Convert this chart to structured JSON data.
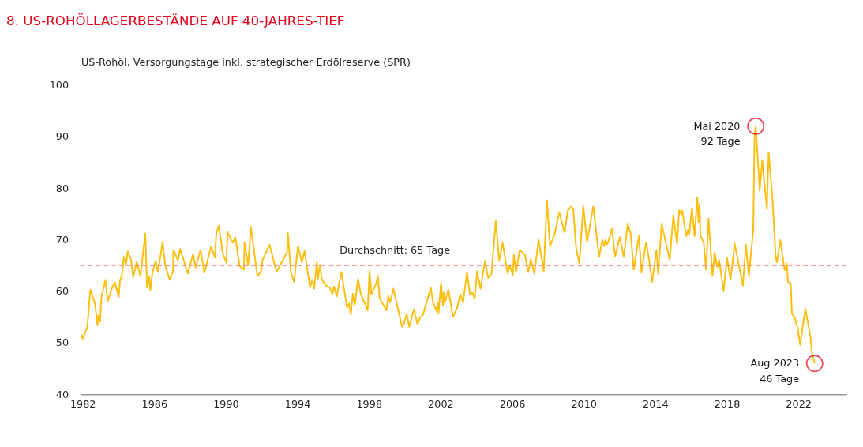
{
  "chart_data": {
    "type": "line",
    "title": "8.  US-ROHÖLLAGERBESTÄNDE AUF 40-JAHRES-TIEF",
    "ylabel": "US-Rohöl, Versorgungstage inkl. strategischer Erdölreserve (SPR)",
    "xlim": [
      1981.9,
      2024.7
    ],
    "xticks": [
      1982,
      1986,
      1990,
      1994,
      1998,
      2002,
      2006,
      2010,
      2014,
      2018,
      2022
    ],
    "ylim": [
      40,
      100
    ],
    "yticks": [
      40,
      50,
      60,
      70,
      80,
      90,
      100
    ],
    "grid": false,
    "marker": "none",
    "line_style": "solid",
    "ref_lines": [
      {
        "axis": "y",
        "value": 65,
        "label": "Durchschnitt: 65 Tage",
        "color": "#f07878",
        "line_style": "dashed"
      }
    ],
    "annotations": [
      {
        "text": "Mai 2020\n92 Tage",
        "x": 2019.62,
        "y": 92
      },
      {
        "text": "Aug 2023\n46 Tage",
        "x": 2022.91,
        "y": 46
      }
    ],
    "series": [
      {
        "color": "#fcbf10",
        "x": [
          1981.93,
          1982.0,
          1982.26,
          1982.43,
          1982.69,
          1982.83,
          1982.86,
          1982.98,
          1983.04,
          1983.27,
          1983.4,
          1983.66,
          1983.8,
          1984.02,
          1984.09,
          1984.19,
          1984.3,
          1984.42,
          1984.52,
          1984.71,
          1984.82,
          1985.03,
          1985.23,
          1985.5,
          1985.6,
          1985.72,
          1985.78,
          1985.89,
          1986.08,
          1986.21,
          1986.47,
          1986.61,
          1986.87,
          1987.05,
          1987.07,
          1987.33,
          1987.45,
          1987.88,
          1988.17,
          1988.31,
          1988.59,
          1988.8,
          1989.18,
          1989.39,
          1989.47,
          1989.61,
          1989.83,
          1990.03,
          1990.1,
          1990.39,
          1990.53,
          1990.77,
          1991.01,
          1991.05,
          1991.25,
          1991.4,
          1991.77,
          1991.98,
          1992.06,
          1992.45,
          1992.84,
          1993.42,
          1993.47,
          1993.64,
          1993.82,
          1994.03,
          1994.25,
          1994.4,
          1994.71,
          1994.83,
          1994.94,
          1995.09,
          1995.15,
          1995.26,
          1995.36,
          1995.55,
          1995.81,
          1995.95,
          1996.05,
          1996.2,
          1996.46,
          1996.78,
          1996.88,
          1996.99,
          1997.1,
          1997.21,
          1997.39,
          1997.54,
          1997.93,
          1998.03,
          1998.14,
          1998.4,
          1998.5,
          1998.6,
          1998.98,
          1999.08,
          1999.18,
          1999.37,
          1999.85,
          1999.95,
          2000.11,
          2000.25,
          2000.52,
          2000.71,
          2000.85,
          2001.03,
          2001.46,
          2001.58,
          2001.77,
          2001.86,
          2001.89,
          2002.03,
          2002.14,
          2002.18,
          2002.25,
          2002.44,
          2002.7,
          2002.93,
          2003.11,
          2003.26,
          2003.48,
          2003.65,
          2003.79,
          2003.91,
          2004.05,
          2004.23,
          2004.49,
          2004.66,
          2004.85,
          2005.09,
          2005.28,
          2005.47,
          2005.75,
          2005.86,
          2006.04,
          2006.1,
          2006.22,
          2006.43,
          2006.72,
          2006.9,
          2007.05,
          2007.25,
          2007.48,
          2007.77,
          2007.95,
          2008.12,
          2008.38,
          2008.64,
          2008.81,
          2008.94,
          2009.11,
          2009.29,
          2009.42,
          2009.59,
          2009.76,
          2009.98,
          2010.19,
          2010.54,
          2010.86,
          2011.05,
          2011.15,
          2011.22,
          2011.33,
          2011.58,
          2011.76,
          2012.02,
          2012.24,
          2012.46,
          2012.63,
          2012.8,
          2013.09,
          2013.23,
          2013.49,
          2013.64,
          2013.83,
          2014.07,
          2014.17,
          2014.36,
          2014.81,
          2015.01,
          2015.22,
          2015.34,
          2015.47,
          2015.51,
          2015.73,
          2015.83,
          2015.9,
          2016.05,
          2016.2,
          2016.35,
          2016.42,
          2016.48,
          2016.52,
          2016.71,
          2016.84,
          2016.98,
          2017.2,
          2017.32,
          2017.46,
          2017.57,
          2017.82,
          2018.01,
          2018.21,
          2018.44,
          2018.9,
          2019.07,
          2019.23,
          2019.48,
          2019.55,
          2019.62,
          2019.84,
          2019.98,
          2020.24,
          2020.34,
          2020.56,
          2020.73,
          2020.8,
          2020.99,
          2021.23,
          2021.35,
          2021.42,
          2021.57,
          2021.64,
          2021.78,
          2021.88,
          2021.96,
          2022.1,
          2022.39,
          2022.68,
          2022.77,
          2022.91
        ],
        "values": [
          51.6,
          50.8,
          53.0,
          60.3,
          57.6,
          53.4,
          55.2,
          54.1,
          58.6,
          62.2,
          58.1,
          60.8,
          61.7,
          58.9,
          62.2,
          62.9,
          66.7,
          65.0,
          67.7,
          66.1,
          62.7,
          65.7,
          62.9,
          71.2,
          60.7,
          62.9,
          60.1,
          63.4,
          65.9,
          63.7,
          69.6,
          65.1,
          62.2,
          63.9,
          68.0,
          66.0,
          68.2,
          63.4,
          67.2,
          64.6,
          68.0,
          63.5,
          68.7,
          66.5,
          71.2,
          72.7,
          67.4,
          65.5,
          71.5,
          69.4,
          70.5,
          64.9,
          64.2,
          69.4,
          65.0,
          72.5,
          62.9,
          63.9,
          66.1,
          69.0,
          63.7,
          67.6,
          71.3,
          63.6,
          61.8,
          68.8,
          65.6,
          67.8,
          60.7,
          62.2,
          60.5,
          65.7,
          62.4,
          65.1,
          62.4,
          61.2,
          60.7,
          59.4,
          60.9,
          59.0,
          63.7,
          56.8,
          57.6,
          55.5,
          59.5,
          57.3,
          62.4,
          59.5,
          56.3,
          63.9,
          59.4,
          61.4,
          63.0,
          58.6,
          56.3,
          59.1,
          57.8,
          60.5,
          53.1,
          53.6,
          55.6,
          53.1,
          56.5,
          53.6,
          54.8,
          55.5,
          60.7,
          57.8,
          56.2,
          57.8,
          55.8,
          61.6,
          57.3,
          59.7,
          57.8,
          60.3,
          55.0,
          56.8,
          59.4,
          57.8,
          63.7,
          59.4,
          59.7,
          58.5,
          63.9,
          60.5,
          65.9,
          62.6,
          63.4,
          73.6,
          65.9,
          69.4,
          63.5,
          65.1,
          63.1,
          67.1,
          63.7,
          68.0,
          67.1,
          63.7,
          66.2,
          63.4,
          70.0,
          63.9,
          77.6,
          68.7,
          71.1,
          75.3,
          72.9,
          71.4,
          75.6,
          76.4,
          75.9,
          68.1,
          65.4,
          76.5,
          69.6,
          76.4,
          66.6,
          70.0,
          68.7,
          69.9,
          69.1,
          72.1,
          66.7,
          70.5,
          66.6,
          73.0,
          71.2,
          64.2,
          70.7,
          63.6,
          69.5,
          66.5,
          61.8,
          68.0,
          63.4,
          73.0,
          66.1,
          74.7,
          69.2,
          75.7,
          74.9,
          75.6,
          70.7,
          71.9,
          70.9,
          76.1,
          70.7,
          78.2,
          73.4,
          76.9,
          70.9,
          69.4,
          64.2,
          74.1,
          63.0,
          67.5,
          64.7,
          66.1,
          60.0,
          66.5,
          62.2,
          69.2,
          61.1,
          69.0,
          62.9,
          71.9,
          90.2,
          92,
          79.5,
          85.4,
          75.9,
          86.9,
          77.6,
          66.7,
          65.6,
          69.9,
          64.1,
          65.4,
          61.8,
          61.5,
          55.6,
          55.0,
          53.8,
          52.8,
          49.6,
          56.6,
          51.1,
          47.8,
          46
        ]
      }
    ]
  }
}
